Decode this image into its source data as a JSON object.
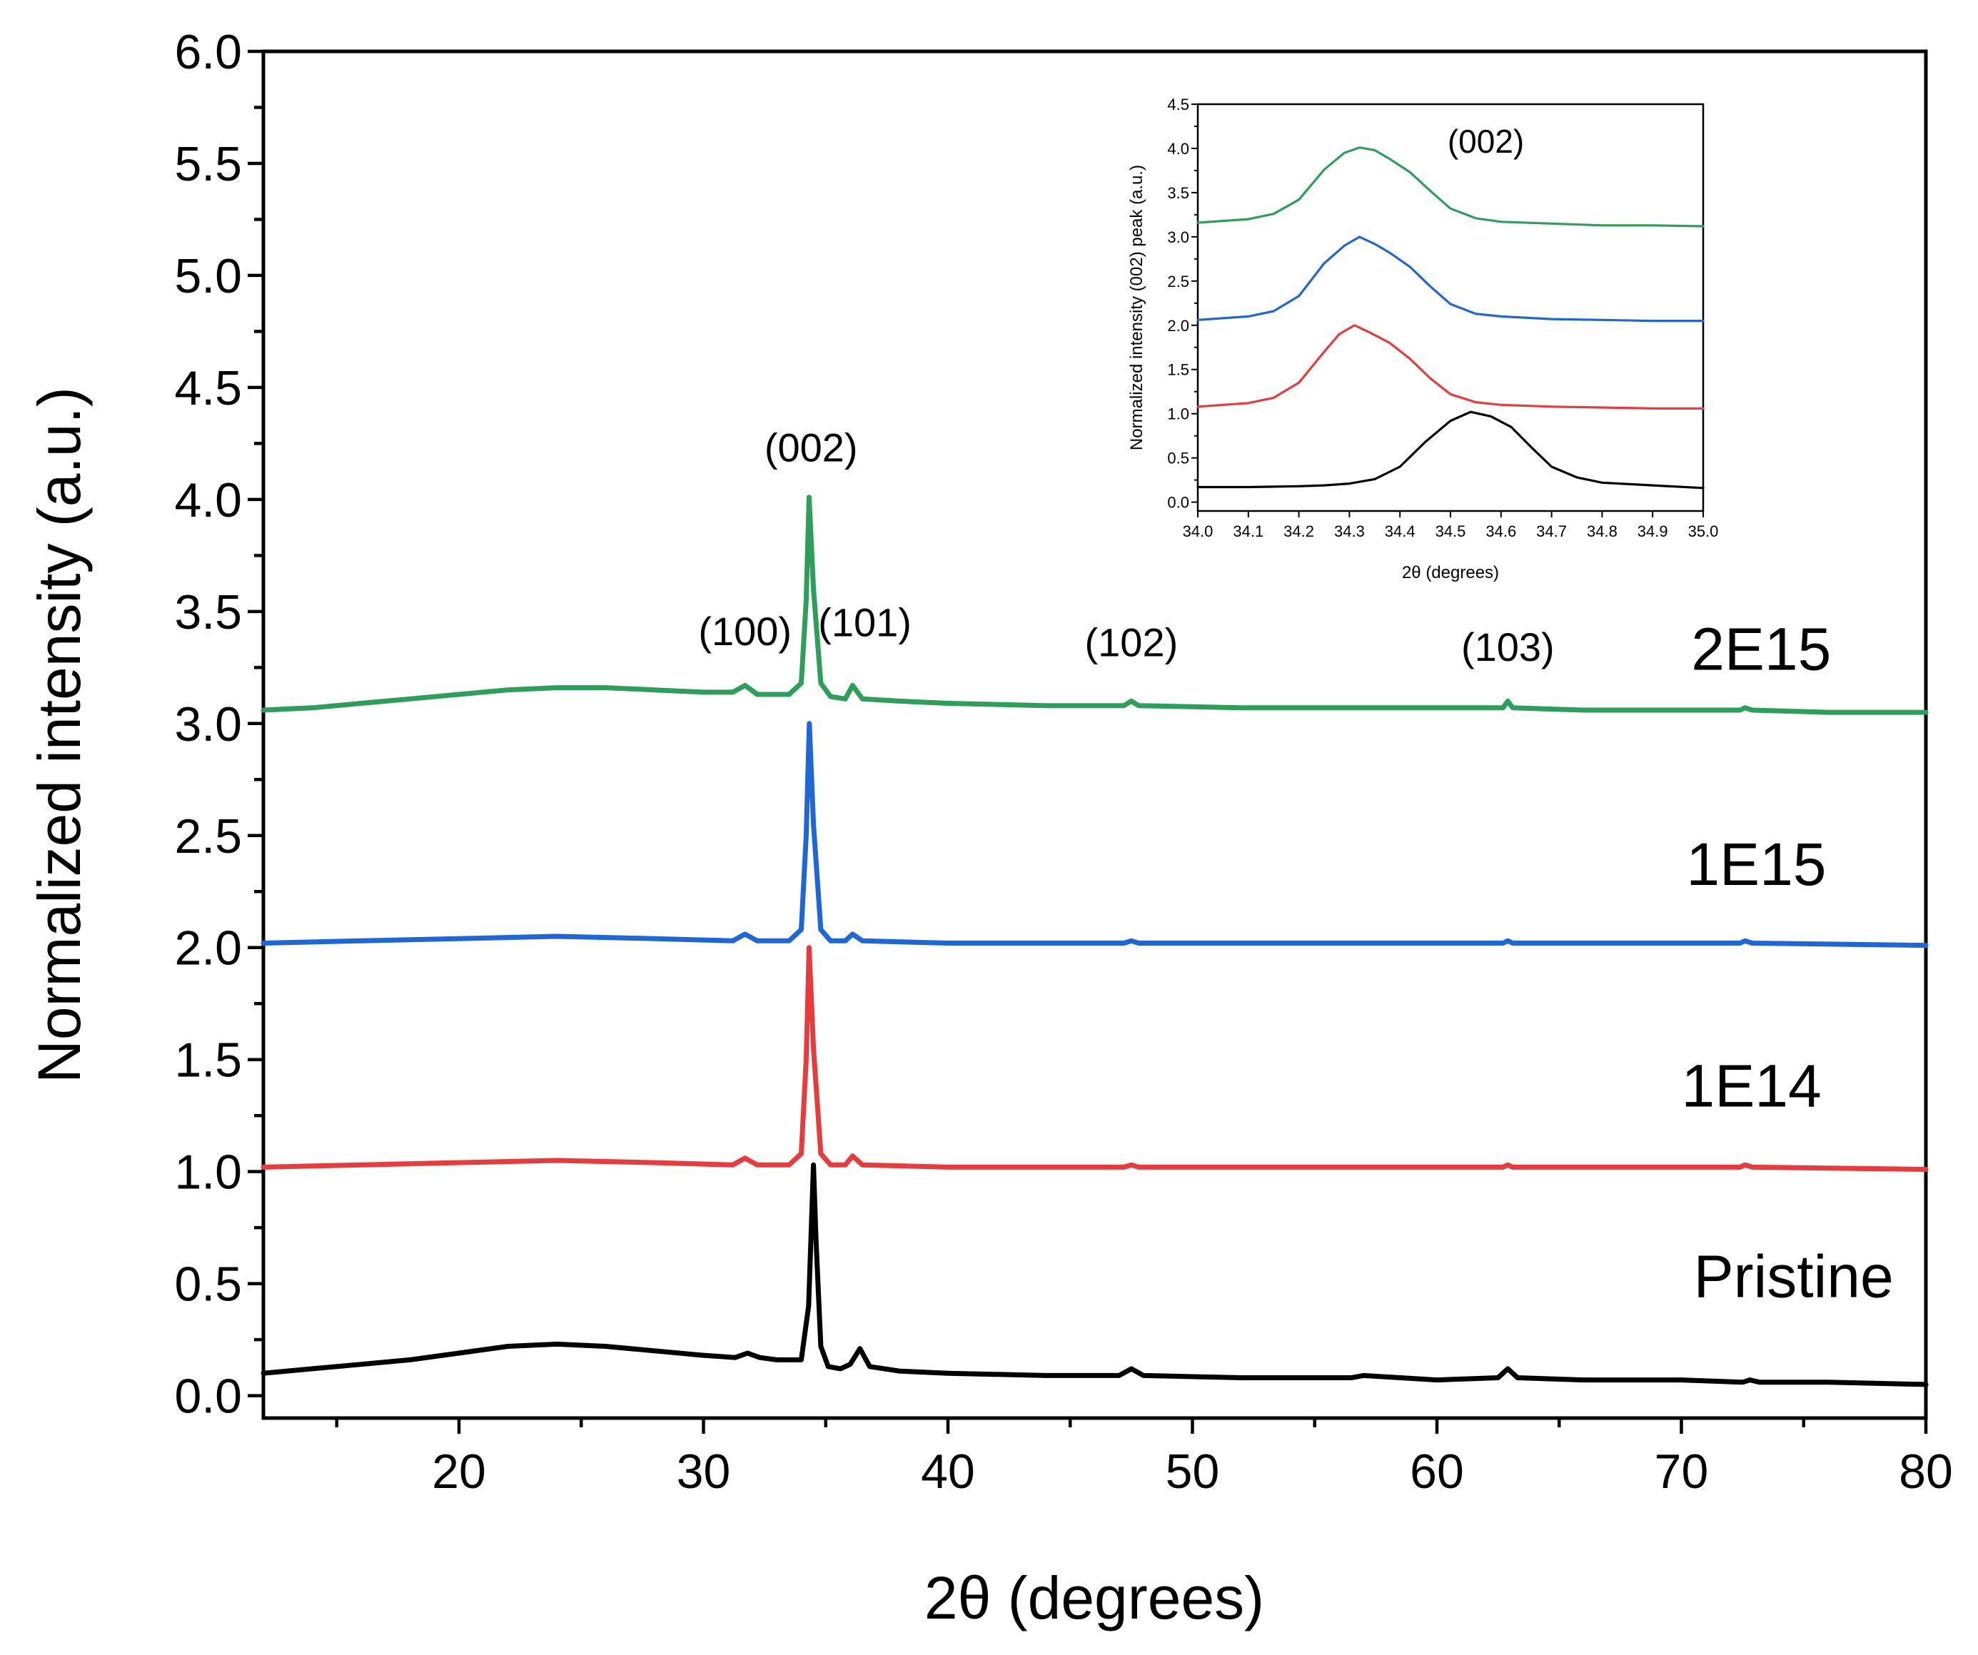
{
  "chart_data": [
    {
      "id": "main",
      "type": "line",
      "title": "",
      "xlabel": "2θ (degrees)",
      "ylabel": "Normalized intensity (a.u.)",
      "xlim": [
        12,
        80
      ],
      "ylim": [
        -0.1,
        6.0
      ],
      "xticks": [
        20,
        30,
        40,
        50,
        60,
        70,
        80
      ],
      "xticks_minor": [
        15,
        25,
        35,
        45,
        55,
        65,
        75
      ],
      "yticks": [
        0.0,
        0.5,
        1.0,
        1.5,
        2.0,
        2.5,
        3.0,
        3.5,
        4.0,
        4.5,
        5.0,
        5.5,
        6.0
      ],
      "ytick_labels": [
        "0.0",
        "0.5",
        "1.0",
        "1.5",
        "2.0",
        "2.5",
        "3.0",
        "3.5",
        "4.0",
        "4.5",
        "5.0",
        "5.5",
        "6.0"
      ],
      "grid": false,
      "peak_labels": [
        {
          "text": "(100)",
          "x": 31.7,
          "y": 3.35
        },
        {
          "text": "(002)",
          "x": 34.4,
          "y": 4.17
        },
        {
          "text": "(101)",
          "x": 36.6,
          "y": 3.39
        },
        {
          "text": "(102)",
          "x": 47.5,
          "y": 3.3
        },
        {
          "text": "(103)",
          "x": 62.9,
          "y": 3.28
        }
      ],
      "series": [
        {
          "name": "Pristine",
          "color": "#000000",
          "label_pos": [
            70.5,
            0.44
          ],
          "x": [
            12,
            14,
            16,
            18,
            20,
            22,
            24,
            26,
            28,
            30,
            31.3,
            31.8,
            32.3,
            33,
            34.0,
            34.3,
            34.5,
            34.6,
            34.8,
            35.1,
            35.6,
            36.0,
            36.4,
            36.8,
            38,
            40,
            44,
            47.0,
            47.5,
            48.0,
            52,
            56.5,
            57,
            60,
            62.5,
            62.9,
            63.3,
            66,
            70,
            72.5,
            72.8,
            73.2,
            76,
            80
          ],
          "y": [
            0.1,
            0.12,
            0.14,
            0.16,
            0.19,
            0.22,
            0.23,
            0.22,
            0.2,
            0.18,
            0.17,
            0.19,
            0.17,
            0.16,
            0.16,
            0.4,
            1.03,
            0.7,
            0.22,
            0.13,
            0.12,
            0.14,
            0.21,
            0.13,
            0.11,
            0.1,
            0.09,
            0.09,
            0.12,
            0.09,
            0.08,
            0.08,
            0.09,
            0.07,
            0.08,
            0.12,
            0.08,
            0.07,
            0.07,
            0.06,
            0.07,
            0.06,
            0.06,
            0.05
          ]
        },
        {
          "name": "1E14",
          "color": "#e83b3b",
          "label_pos": [
            70.0,
            1.29
          ],
          "x": [
            12,
            16,
            20,
            24,
            28,
            31.2,
            31.7,
            32.2,
            33.5,
            34.0,
            34.2,
            34.32,
            34.5,
            34.8,
            35.2,
            35.8,
            36.1,
            36.5,
            40,
            47.2,
            47.5,
            47.8,
            56.5,
            62.7,
            62.9,
            63.1,
            72.4,
            72.6,
            72.9,
            80
          ],
          "y": [
            1.02,
            1.03,
            1.04,
            1.05,
            1.04,
            1.03,
            1.06,
            1.03,
            1.03,
            1.08,
            1.5,
            2.0,
            1.55,
            1.08,
            1.03,
            1.03,
            1.07,
            1.03,
            1.02,
            1.02,
            1.03,
            1.02,
            1.02,
            1.02,
            1.03,
            1.02,
            1.02,
            1.03,
            1.02,
            1.01
          ]
        },
        {
          "name": "1E15",
          "color": "#1f66d6",
          "label_pos": [
            70.2,
            2.28
          ],
          "x": [
            12,
            16,
            20,
            24,
            28,
            31.2,
            31.7,
            32.2,
            33.5,
            34.0,
            34.2,
            34.33,
            34.5,
            34.8,
            35.2,
            35.8,
            36.1,
            36.5,
            40,
            47.2,
            47.5,
            47.8,
            56.5,
            62.7,
            62.9,
            63.1,
            72.4,
            72.6,
            72.9,
            80
          ],
          "y": [
            2.02,
            2.03,
            2.04,
            2.05,
            2.04,
            2.03,
            2.06,
            2.03,
            2.03,
            2.08,
            2.5,
            3.0,
            2.55,
            2.08,
            2.03,
            2.03,
            2.06,
            2.03,
            2.02,
            2.02,
            2.03,
            2.02,
            2.02,
            2.02,
            2.03,
            2.02,
            2.02,
            2.03,
            2.02,
            2.01
          ]
        },
        {
          "name": "2E15",
          "color": "#2e9e5b",
          "label_pos": [
            70.4,
            3.24
          ],
          "x": [
            12,
            14,
            16,
            18,
            20,
            22,
            24,
            26,
            28,
            30,
            31.2,
            31.7,
            32.2,
            33.5,
            34.0,
            34.2,
            34.32,
            34.5,
            34.8,
            35.2,
            35.8,
            36.1,
            36.5,
            38,
            40,
            44,
            47.2,
            47.5,
            47.8,
            52,
            56.5,
            60,
            62.7,
            62.9,
            63.1,
            66,
            70,
            72.4,
            72.6,
            72.9,
            76,
            80
          ],
          "y": [
            3.06,
            3.07,
            3.09,
            3.11,
            3.13,
            3.15,
            3.16,
            3.16,
            3.15,
            3.14,
            3.14,
            3.17,
            3.13,
            3.13,
            3.18,
            3.55,
            4.01,
            3.6,
            3.18,
            3.12,
            3.11,
            3.17,
            3.11,
            3.1,
            3.09,
            3.08,
            3.08,
            3.1,
            3.08,
            3.07,
            3.07,
            3.07,
            3.07,
            3.1,
            3.07,
            3.06,
            3.06,
            3.06,
            3.07,
            3.06,
            3.05,
            3.05
          ]
        }
      ]
    },
    {
      "id": "inset",
      "type": "line",
      "title": "",
      "xlabel": "2θ (degrees)",
      "ylabel": "Normalized intensity (002) peak (a.u.)",
      "xlim": [
        34.0,
        35.0
      ],
      "ylim": [
        -0.1,
        4.5
      ],
      "xticks": [
        34.0,
        34.1,
        34.2,
        34.3,
        34.4,
        34.5,
        34.6,
        34.7,
        34.8,
        34.9,
        35.0
      ],
      "xtick_labels": [
        "34.0",
        "34.1",
        "34.2",
        "34.3",
        "34.4",
        "34.5",
        "34.6",
        "34.7",
        "34.8",
        "34.9",
        "35.0"
      ],
      "yticks": [
        0.0,
        0.5,
        1.0,
        1.5,
        2.0,
        2.5,
        3.0,
        3.5,
        4.0,
        4.5
      ],
      "ytick_labels": [
        "0.0",
        "0.5",
        "1.0",
        "1.5",
        "2.0",
        "2.5",
        "3.0",
        "3.5",
        "4.0",
        "4.5"
      ],
      "peak_labels": [
        {
          "text": "(002)",
          "x": 34.57,
          "y": 3.95
        }
      ],
      "series": [
        {
          "name": "Pristine",
          "color": "#000000",
          "x": [
            34.0,
            34.1,
            34.2,
            34.25,
            34.3,
            34.35,
            34.4,
            34.45,
            34.5,
            34.54,
            34.58,
            34.62,
            34.66,
            34.7,
            34.75,
            34.8,
            34.9,
            35.0
          ],
          "y": [
            0.17,
            0.17,
            0.18,
            0.19,
            0.21,
            0.26,
            0.4,
            0.68,
            0.92,
            1.02,
            0.97,
            0.85,
            0.62,
            0.4,
            0.28,
            0.22,
            0.19,
            0.16
          ]
        },
        {
          "name": "1E14",
          "color": "#e83b3b",
          "x": [
            34.0,
            34.1,
            34.15,
            34.2,
            34.25,
            34.28,
            34.31,
            34.34,
            34.38,
            34.42,
            34.46,
            34.5,
            34.55,
            34.6,
            34.7,
            34.8,
            34.9,
            35.0
          ],
          "y": [
            1.08,
            1.12,
            1.18,
            1.35,
            1.7,
            1.9,
            2.0,
            1.92,
            1.8,
            1.62,
            1.4,
            1.22,
            1.13,
            1.1,
            1.08,
            1.07,
            1.06,
            1.06
          ]
        },
        {
          "name": "1E15",
          "color": "#1f66d6",
          "x": [
            34.0,
            34.1,
            34.15,
            34.2,
            34.25,
            34.29,
            34.32,
            34.35,
            34.38,
            34.42,
            34.46,
            34.5,
            34.55,
            34.6,
            34.7,
            34.8,
            34.9,
            35.0
          ],
          "y": [
            2.06,
            2.1,
            2.16,
            2.33,
            2.7,
            2.9,
            3.0,
            2.92,
            2.82,
            2.66,
            2.44,
            2.24,
            2.13,
            2.1,
            2.07,
            2.06,
            2.05,
            2.05
          ]
        },
        {
          "name": "2E15",
          "color": "#2e9e5b",
          "x": [
            34.0,
            34.1,
            34.15,
            34.2,
            34.25,
            34.29,
            34.32,
            34.35,
            34.38,
            34.42,
            34.46,
            34.5,
            34.55,
            34.6,
            34.7,
            34.8,
            34.9,
            35.0
          ],
          "y": [
            3.16,
            3.2,
            3.26,
            3.42,
            3.76,
            3.95,
            4.01,
            3.98,
            3.88,
            3.73,
            3.52,
            3.32,
            3.21,
            3.17,
            3.15,
            3.13,
            3.13,
            3.12
          ]
        }
      ]
    }
  ]
}
